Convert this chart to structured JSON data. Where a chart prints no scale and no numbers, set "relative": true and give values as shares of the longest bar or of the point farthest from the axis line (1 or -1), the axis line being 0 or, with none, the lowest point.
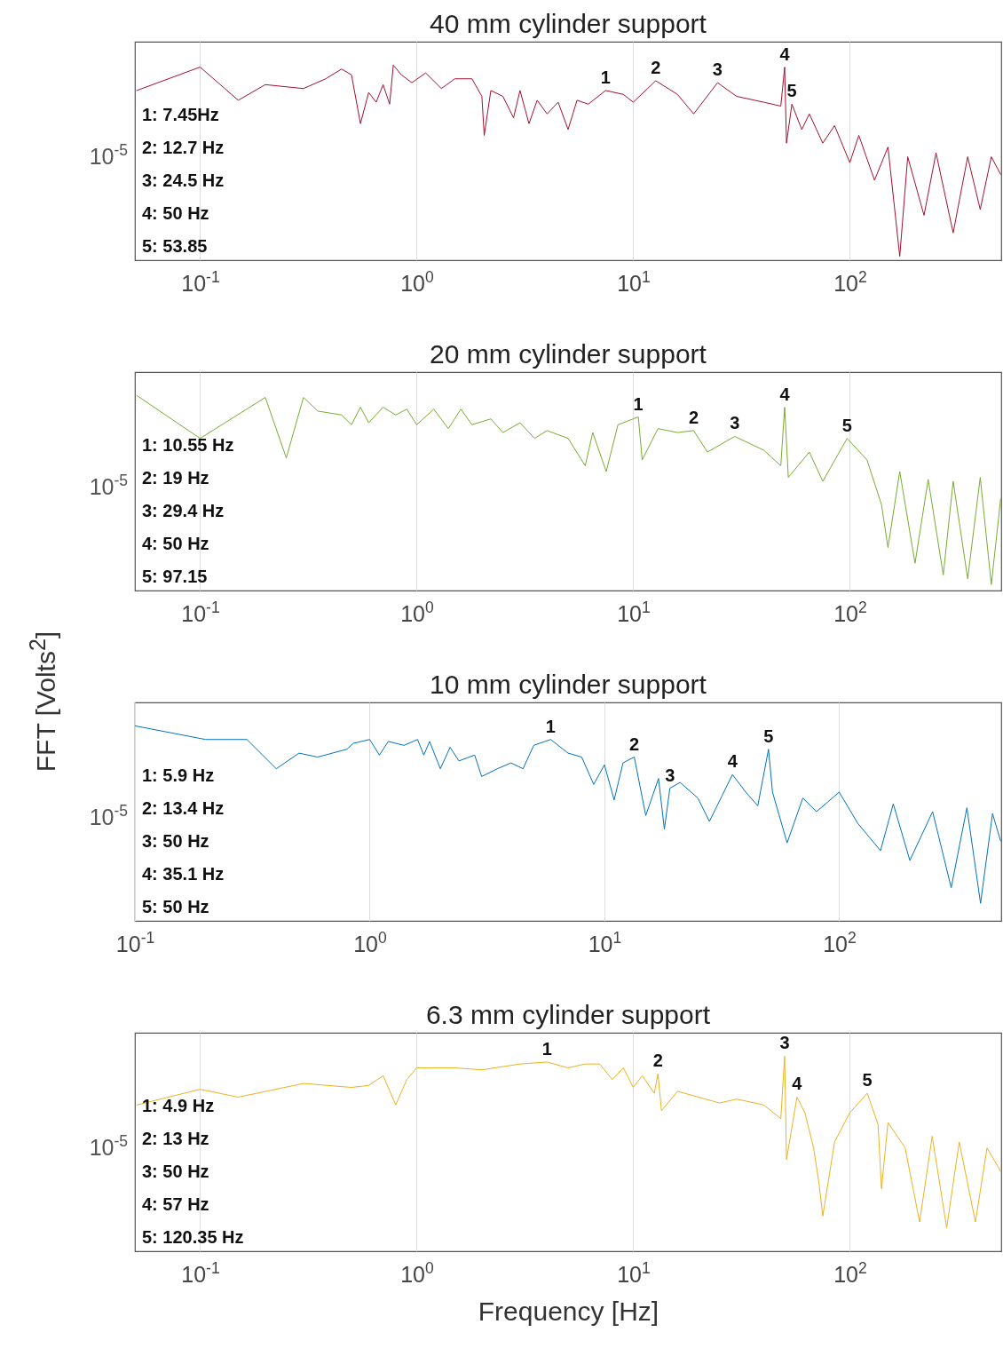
{
  "chart_data": [
    {
      "type": "line",
      "title": "40 mm cylinder support",
      "relative": true,
      "log": "x",
      "grid": "x",
      "xlim": [
        0.05,
        500
      ],
      "xticks": [
        {
          "value": 0.1,
          "label": "10$^{-1}$"
        },
        {
          "value": 1,
          "label": "10$^{0}$"
        },
        {
          "value": 10,
          "label": "10$^{1}$"
        },
        {
          "value": 100,
          "label": "10$^{2}$"
        }
      ],
      "series": [
        {
          "color": "#a50f2d",
          "x": [
            0.051,
            0.1,
            0.15,
            0.2,
            0.3,
            0.38,
            0.45,
            0.5,
            0.55,
            0.6,
            0.65,
            0.7,
            0.75,
            0.78,
            0.85,
            0.95,
            1.1,
            1.3,
            1.5,
            1.8,
            2.0,
            2.05,
            2.2,
            2.5,
            2.8,
            3.0,
            3.3,
            3.6,
            4.0,
            4.5,
            5.0,
            5.5,
            6.2,
            7.45,
            9,
            10,
            12.7,
            16,
            19,
            24.5,
            30,
            40,
            48,
            50,
            51,
            54,
            60,
            65,
            75,
            85,
            100,
            110,
            130,
            150,
            170,
            185,
            220,
            250,
            300,
            350,
            400,
            450,
            497
          ],
          "values": [
            0.87,
            0.99,
            0.82,
            0.9,
            0.88,
            0.93,
            0.98,
            0.95,
            0.7,
            0.86,
            0.81,
            0.9,
            0.8,
            1,
            0.95,
            0.91,
            0.96,
            0.88,
            0.93,
            0.93,
            0.84,
            0.64,
            0.87,
            0.84,
            0.73,
            0.87,
            0.7,
            0.82,
            0.75,
            0.81,
            0.67,
            0.82,
            0.8,
            0.87,
            0.85,
            0.81,
            0.92,
            0.85,
            0.75,
            0.91,
            0.84,
            0.81,
            0.79,
            0.99,
            0.6,
            0.8,
            0.67,
            0.75,
            0.6,
            0.69,
            0.5,
            0.64,
            0.41,
            0.58,
            0.02,
            0.53,
            0.23,
            0.55,
            0.14,
            0.53,
            0.26,
            0.53,
            0.44
          ]
        }
      ],
      "annotations": [
        "10$^{-5}$",
        "1: 7.45Hz",
        "2: 12.7 Hz",
        "3: 24.5 Hz",
        "4: 50 Hz",
        "5: 53.85",
        {
          "text": "1",
          "x": 7.45,
          "y": 0.87
        },
        {
          "text": "2",
          "x": 12.7,
          "y": 0.92
        },
        {
          "text": "3",
          "x": 24.5,
          "y": 0.91
        },
        {
          "text": "4",
          "x": 50,
          "y": 0.99
        },
        {
          "text": "5",
          "x": 54,
          "y": 0.8
        }
      ]
    },
    {
      "type": "line",
      "title": "20 mm cylinder support",
      "ylabel": "FFT [Volts$^{2}$]",
      "relative": true,
      "log": "x",
      "grid": "x",
      "xlim": [
        0.05,
        500
      ],
      "xticks": [
        {
          "value": 0.1,
          "label": "10$^{-1}$"
        },
        {
          "value": 1,
          "label": "10$^{0}$"
        },
        {
          "value": 10,
          "label": "10$^{1}$"
        },
        {
          "value": 100,
          "label": "10$^{2}$"
        }
      ],
      "series": [
        {
          "color": "#77ac30",
          "x": [
            0.051,
            0.1,
            0.2,
            0.25,
            0.3,
            0.35,
            0.45,
            0.5,
            0.55,
            0.6,
            0.7,
            0.8,
            0.9,
            1.0,
            1.2,
            1.4,
            1.6,
            1.8,
            2.2,
            2.5,
            3,
            3.5,
            4,
            5,
            6,
            6.5,
            7.5,
            8.5,
            10.55,
            11,
            13,
            16,
            19,
            22,
            29.4,
            40,
            48,
            50,
            52,
            65,
            75,
            97.15,
            120,
            140,
            150,
            170,
            200,
            230,
            270,
            300,
            350,
            400,
            450,
            497
          ],
          "values": [
            1,
            0.78,
            0.99,
            0.68,
            0.99,
            0.92,
            0.9,
            0.85,
            0.94,
            0.86,
            0.94,
            0.9,
            0.93,
            0.85,
            0.93,
            0.83,
            0.93,
            0.85,
            0.88,
            0.81,
            0.86,
            0.78,
            0.82,
            0.78,
            0.64,
            0.81,
            0.61,
            0.85,
            0.89,
            0.67,
            0.83,
            0.81,
            0.82,
            0.71,
            0.79,
            0.72,
            0.64,
            0.94,
            0.58,
            0.71,
            0.56,
            0.78,
            0.67,
            0.44,
            0.22,
            0.61,
            0.14,
            0.57,
            0.08,
            0.56,
            0.06,
            0.58,
            0.03,
            0.47
          ]
        }
      ],
      "annotations": [
        "10$^{-5}$",
        "1: 10.55 Hz",
        "2:  19 Hz",
        "3: 29.4 Hz",
        "4: 50 Hz",
        "5: 97.15",
        {
          "text": "1",
          "x": 10.55,
          "y": 0.89
        },
        {
          "text": "2",
          "x": 19,
          "y": 0.82
        },
        {
          "text": "3",
          "x": 29.4,
          "y": 0.79
        },
        {
          "text": "4",
          "x": 50,
          "y": 0.94
        },
        {
          "text": "5",
          "x": 97.15,
          "y": 0.78
        }
      ]
    },
    {
      "type": "line",
      "title": "10 mm cylinder support",
      "relative": true,
      "log": "x",
      "grid": "x",
      "xlim": [
        0.1,
        490
      ],
      "xticks": [
        {
          "value": 0.1,
          "label": "10$^{-1}$"
        },
        {
          "value": 1,
          "label": "10$^{0}$"
        },
        {
          "value": 10,
          "label": "10$^{1}$"
        },
        {
          "value": 100,
          "label": "10$^{2}$"
        }
      ],
      "series": [
        {
          "color": "#0072bd",
          "x": [
            0.1,
            0.2,
            0.3,
            0.4,
            0.5,
            0.6,
            0.8,
            0.85,
            1.0,
            1.1,
            1.2,
            1.4,
            1.6,
            1.7,
            1.8,
            2.0,
            2.2,
            2.4,
            2.8,
            3.0,
            3.5,
            4.0,
            4.5,
            5.0,
            5.9,
            7.0,
            8.0,
            9.0,
            10,
            11,
            12,
            13.4,
            15,
            17,
            18,
            19,
            21,
            25,
            28,
            35.1,
            40,
            45,
            50,
            52,
            60,
            70,
            80,
            100,
            120,
            150,
            170,
            200,
            250,
            300,
            350,
            400,
            450,
            487
          ],
          "values": [
            1,
            0.93,
            0.93,
            0.78,
            0.86,
            0.84,
            0.88,
            0.91,
            0.93,
            0.85,
            0.92,
            0.9,
            0.93,
            0.85,
            0.92,
            0.78,
            0.89,
            0.82,
            0.85,
            0.74,
            0.78,
            0.81,
            0.78,
            0.9,
            0.93,
            0.86,
            0.84,
            0.7,
            0.8,
            0.62,
            0.81,
            0.84,
            0.54,
            0.73,
            0.47,
            0.68,
            0.71,
            0.63,
            0.51,
            0.75,
            0.66,
            0.59,
            0.88,
            0.66,
            0.4,
            0.63,
            0.56,
            0.66,
            0.5,
            0.36,
            0.6,
            0.31,
            0.56,
            0.17,
            0.58,
            0.09,
            0.55,
            0.41
          ]
        }
      ],
      "annotations": [
        "10$^{-5}$",
        "1: 5.9 Hz",
        "2: 13.4  Hz",
        "3: 50  Hz",
        "4: 35.1 Hz",
        "5: 50 Hz",
        {
          "text": "1",
          "x": 5.9,
          "y": 0.93
        },
        {
          "text": "2",
          "x": 13.4,
          "y": 0.84
        },
        {
          "text": "3",
          "x": 19,
          "y": 0.68
        },
        {
          "text": "4",
          "x": 35.1,
          "y": 0.75
        },
        {
          "text": "5",
          "x": 50,
          "y": 0.88
        }
      ]
    },
    {
      "type": "line",
      "title": "6.3 mm cylinder support",
      "xlabel": "Frequency [Hz]",
      "relative": true,
      "log": "x",
      "grid": "x",
      "xlim": [
        0.05,
        500
      ],
      "xticks": [
        {
          "value": 0.1,
          "label": "10$^{-1}$"
        },
        {
          "value": 1,
          "label": "10$^{0}$"
        },
        {
          "value": 10,
          "label": "10$^{1}$"
        },
        {
          "value": 100,
          "label": "10$^{2}$"
        }
      ],
      "series": [
        {
          "color": "#edb120",
          "x": [
            0.051,
            0.1,
            0.15,
            0.3,
            0.5,
            0.6,
            0.7,
            0.8,
            0.9,
            1.0,
            1.5,
            2,
            3,
            4,
            5,
            6,
            7,
            8,
            9,
            10,
            11,
            12.5,
            13,
            13.5,
            16,
            20,
            25,
            30,
            40,
            48,
            50,
            51,
            57,
            62,
            68,
            72,
            75,
            85,
            100,
            120.35,
            135,
            140,
            150,
            180,
            210,
            240,
            280,
            320,
            380,
            430,
            497
          ],
          "values": [
            0.75,
            0.83,
            0.79,
            0.86,
            0.84,
            0.85,
            0.9,
            0.75,
            0.88,
            0.94,
            0.94,
            0.93,
            0.96,
            0.97,
            0.94,
            0.96,
            0.96,
            0.88,
            0.94,
            0.84,
            0.9,
            0.81,
            0.91,
            0.72,
            0.82,
            0.79,
            0.76,
            0.78,
            0.75,
            0.68,
            1,
            0.47,
            0.79,
            0.71,
            0.53,
            0.35,
            0.18,
            0.56,
            0.71,
            0.81,
            0.65,
            0.32,
            0.66,
            0.53,
            0.15,
            0.59,
            0.12,
            0.56,
            0.15,
            0.53,
            0.41
          ]
        }
      ],
      "annotations": [
        "10$^{-5}$",
        "1: 4.9 Hz",
        "2: 13  Hz",
        "3: 50 Hz",
        "4: 57 Hz",
        "5: 120.35  Hz",
        {
          "text": "1",
          "x": 4,
          "y": 0.97
        },
        {
          "text": "2",
          "x": 13,
          "y": 0.91
        },
        {
          "text": "3",
          "x": 50,
          "y": 1
        },
        {
          "text": "4",
          "x": 57,
          "y": 0.79
        },
        {
          "text": "5",
          "x": 120.35,
          "y": 0.81
        }
      ]
    }
  ]
}
